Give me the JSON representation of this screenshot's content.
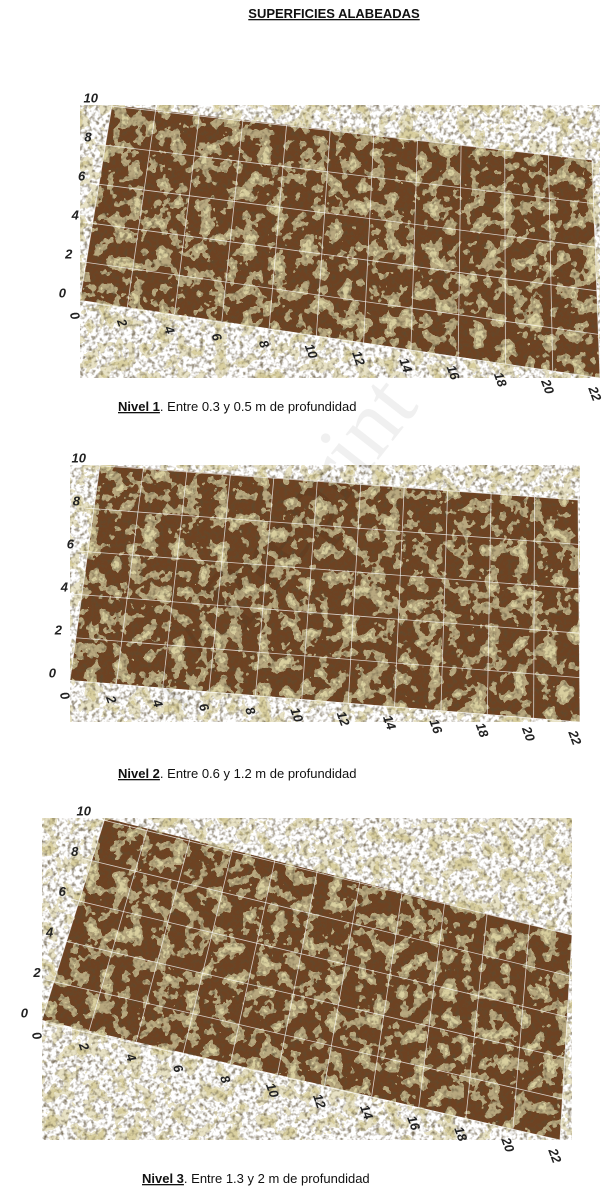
{
  "header": {
    "title": "SUPERFICIES ALABEADAS"
  },
  "panels": [
    {
      "label": "Nivel 1",
      "caption": ".  Entre 0.3 y 0.5 m de profundidad",
      "y_ticks": [
        "0",
        "2",
        "4",
        "6",
        "8",
        "10"
      ],
      "x_ticks": [
        "0",
        "2",
        "4",
        "6",
        "8",
        "10",
        "12",
        "14",
        "16",
        "18",
        "20",
        "22"
      ]
    },
    {
      "label": "Nivel 2",
      "caption": ".  Entre 0.6 y 1.2 m de profundidad",
      "y_ticks": [
        "0",
        "2",
        "4",
        "6",
        "8",
        "10"
      ],
      "x_ticks": [
        "0",
        "2",
        "4",
        "6",
        "8",
        "10",
        "12",
        "14",
        "16",
        "18",
        "20",
        "22"
      ]
    },
    {
      "label": "Nivel 3",
      "caption": ".  Entre 1.3 y 2 m de profundidad",
      "y_ticks": [
        "0",
        "2",
        "4",
        "6",
        "8",
        "10"
      ],
      "x_ticks": [
        "0",
        "2",
        "4",
        "6",
        "8",
        "10",
        "12",
        "14",
        "16",
        "18",
        "20",
        "22"
      ]
    }
  ],
  "watermark": "r / Preprint"
}
